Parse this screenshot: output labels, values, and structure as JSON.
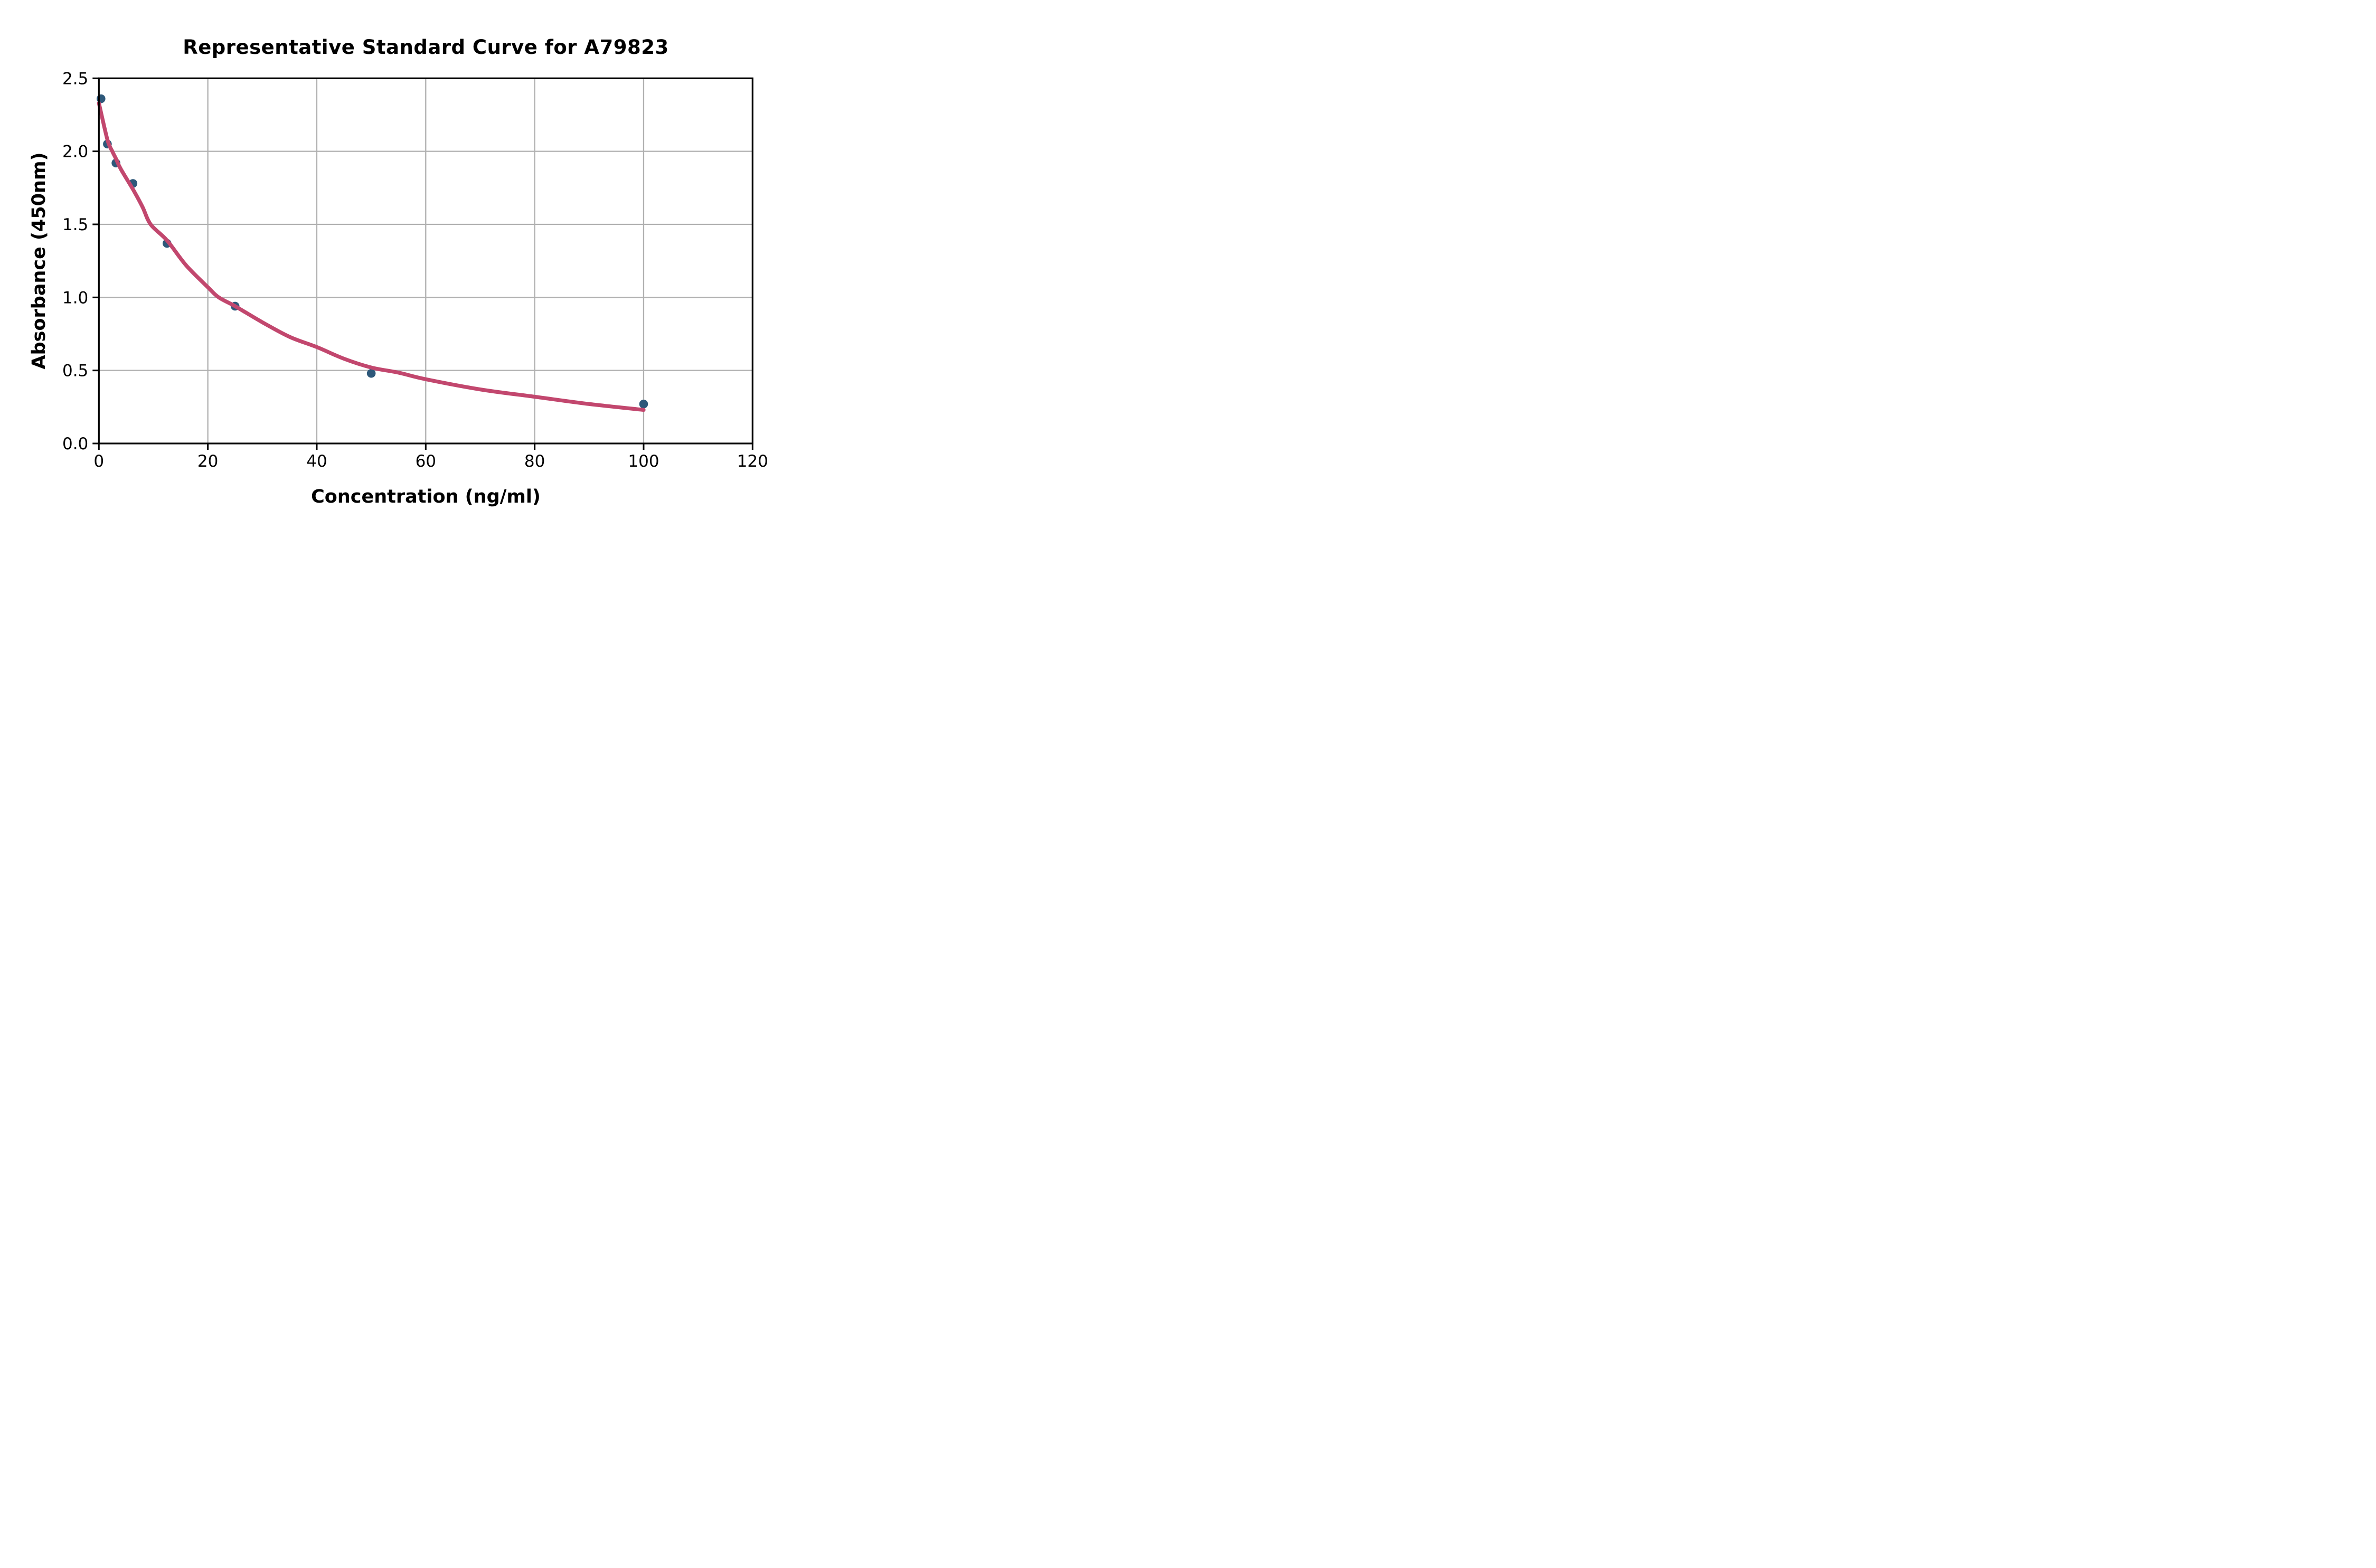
{
  "chart_data": {
    "type": "scatter",
    "title": "Representative Standard Curve for A79823",
    "xlabel": "Concentration (ng/ml)",
    "ylabel": "Absorbance (450nm)",
    "xlim": [
      0,
      120
    ],
    "ylim": [
      0.0,
      2.5
    ],
    "x_ticks": [
      0,
      20,
      40,
      60,
      80,
      100,
      120
    ],
    "y_ticks": [
      "0.0",
      "0.5",
      "1.0",
      "1.5",
      "2.0",
      "2.5"
    ],
    "grid": true,
    "legend": "none",
    "colors": {
      "points": "#2E587A",
      "curve": "#C2476E",
      "grid": "#B0B0B0",
      "spines": "#000000",
      "background": "#FFFFFF"
    },
    "series": [
      {
        "name": "standards",
        "kind": "scatter",
        "points": [
          [
            0.39,
            2.36
          ],
          [
            1.56,
            2.05
          ],
          [
            3.13,
            1.92
          ],
          [
            6.25,
            1.78
          ],
          [
            12.5,
            1.37
          ],
          [
            25,
            0.94
          ],
          [
            50,
            0.48
          ],
          [
            100,
            0.27
          ]
        ]
      },
      {
        "name": "fitted-curve",
        "kind": "line",
        "points": [
          [
            0,
            2.33
          ],
          [
            1.56,
            2.08
          ],
          [
            2.46,
            2.0
          ],
          [
            3.13,
            1.95
          ],
          [
            4,
            1.88
          ],
          [
            6.25,
            1.74
          ],
          [
            8,
            1.62
          ],
          [
            9.5,
            1.5
          ],
          [
            12.5,
            1.39
          ],
          [
            16,
            1.22
          ],
          [
            20,
            1.07
          ],
          [
            22,
            1.0
          ],
          [
            25,
            0.94
          ],
          [
            30,
            0.83
          ],
          [
            35,
            0.73
          ],
          [
            40,
            0.66
          ],
          [
            45,
            0.58
          ],
          [
            50,
            0.52
          ],
          [
            55,
            0.485
          ],
          [
            60,
            0.44
          ],
          [
            70,
            0.37
          ],
          [
            80,
            0.32
          ],
          [
            90,
            0.27
          ],
          [
            100,
            0.23
          ]
        ]
      }
    ]
  }
}
